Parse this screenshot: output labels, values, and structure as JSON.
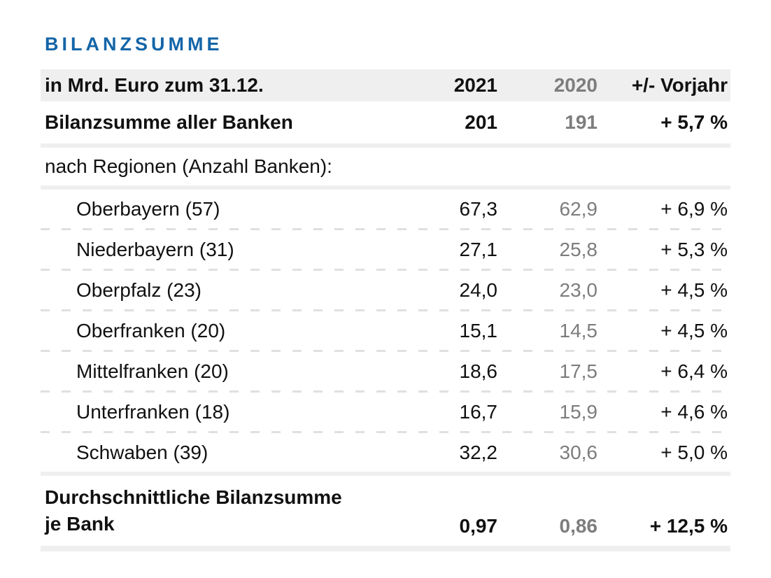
{
  "colors": {
    "accent_blue": "#1465a8",
    "muted_gray": "#7d7d7d",
    "separator_gray": "#efefef",
    "dashed_line_gray": "#e0e0e0"
  },
  "chart_data": {
    "type": "table",
    "title": "BILANZSUMME",
    "header": {
      "label": "in Mrd. Euro zum 31.12.",
      "y2021": "2021",
      "y2020": "2020",
      "change": "+/- Vorjahr"
    },
    "total_row": {
      "label": "Bilanzsumme aller Banken",
      "y2021": "201",
      "y2020": "191",
      "change": "+ 5,7 %"
    },
    "section_label": "nach Regionen (Anzahl Banken):",
    "regions": [
      {
        "label": "Oberbayern (57)",
        "y2021": "67,3",
        "y2020": "62,9",
        "change": "+ 6,9 %"
      },
      {
        "label": "Niederbayern (31)",
        "y2021": "27,1",
        "y2020": "25,8",
        "change": "+ 5,3 %"
      },
      {
        "label": "Oberpfalz (23)",
        "y2021": "24,0",
        "y2020": "23,0",
        "change": "+ 4,5 %"
      },
      {
        "label": "Oberfranken (20)",
        "y2021": "15,1",
        "y2020": "14,5",
        "change": "+ 4,5 %"
      },
      {
        "label": "Mittelfranken (20)",
        "y2021": "18,6",
        "y2020": "17,5",
        "change": "+ 6,4 %"
      },
      {
        "label": "Unterfranken (18)",
        "y2021": "16,7",
        "y2020": "15,9",
        "change": "+ 4,6 %"
      },
      {
        "label": "Schwaben (39)",
        "y2021": "32,2",
        "y2020": "30,6",
        "change": "+ 5,0 %"
      }
    ],
    "average_row": {
      "label_line1": "Durchschnittliche Bilanzsumme",
      "label_line2": "je Bank",
      "y2021": "0,97",
      "y2020": "0,86",
      "change": "+ 12,5 %"
    }
  }
}
